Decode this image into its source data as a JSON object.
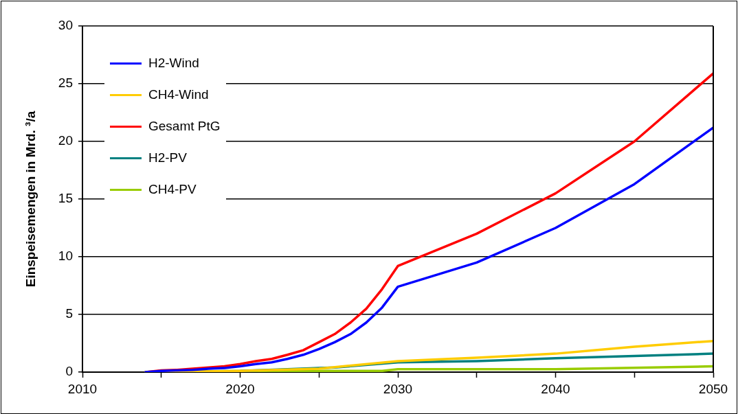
{
  "chart_data": {
    "type": "line",
    "ylabel": "Einspeisemengen in Mrd. ³/a",
    "xlim": [
      2010,
      2050
    ],
    "xticks": [
      2010,
      {
        "value": 2015,
        "label": null
      },
      2020,
      {
        "value": 2025,
        "label": null
      },
      2030,
      {
        "value": 2035,
        "label": null
      },
      2040,
      {
        "value": 2045,
        "label": null
      },
      2050
    ],
    "ylim": [
      0,
      30
    ],
    "yticks": [
      0,
      5,
      10,
      15,
      20,
      25,
      30
    ],
    "grid": "y",
    "legend": "top left",
    "marker": "none",
    "line_style": "solid",
    "series": [
      {
        "name": "H2-Wind",
        "color": "#0000ff",
        "x": [
          2014,
          2015,
          2016,
          2017,
          2018,
          2019,
          2020,
          2021,
          2022,
          2023,
          2024,
          2025,
          2026,
          2027,
          2028,
          2029,
          2030,
          2035,
          2040,
          2045,
          2050
        ],
        "values": [
          0,
          0.1,
          0.15,
          0.2,
          0.3,
          0.35,
          0.5,
          0.7,
          0.85,
          1.15,
          1.5,
          2.0,
          2.6,
          3.3,
          4.3,
          5.6,
          7.4,
          9.5,
          12.5,
          16.3,
          21.2
        ]
      },
      {
        "name": "CH4-Wind",
        "color": "#ffcc00",
        "x": [
          2014,
          2020,
          2025,
          2030,
          2035,
          2040,
          2045,
          2050
        ],
        "values": [
          0,
          0.1,
          0.3,
          0.95,
          1.25,
          1.6,
          2.2,
          2.7
        ]
      },
      {
        "name": "Gesamt PtG",
        "color": "#ff0000",
        "x": [
          2014,
          2015,
          2016,
          2017,
          2018,
          2019,
          2020,
          2021,
          2022,
          2023,
          2024,
          2025,
          2026,
          2027,
          2028,
          2029,
          2030,
          2035,
          2040,
          2045,
          2050
        ],
        "values": [
          0,
          0.15,
          0.2,
          0.3,
          0.4,
          0.5,
          0.7,
          0.95,
          1.15,
          1.5,
          1.9,
          2.6,
          3.3,
          4.3,
          5.5,
          7.2,
          9.2,
          12.0,
          15.5,
          20.0,
          25.9
        ]
      },
      {
        "name": "H2-PV",
        "color": "#008080",
        "x": [
          2014,
          2020,
          2023,
          2025,
          2026,
          2030,
          2035,
          2040,
          2045,
          2050
        ],
        "values": [
          0,
          0.1,
          0.25,
          0.35,
          0.4,
          0.85,
          0.95,
          1.2,
          1.4,
          1.6
        ]
      },
      {
        "name": "CH4-PV",
        "color": "#99cc00",
        "x": [
          2014,
          2025,
          2029,
          2030,
          2040,
          2050
        ],
        "values": [
          0,
          0.1,
          0.1,
          0.25,
          0.25,
          0.5
        ]
      }
    ]
  }
}
